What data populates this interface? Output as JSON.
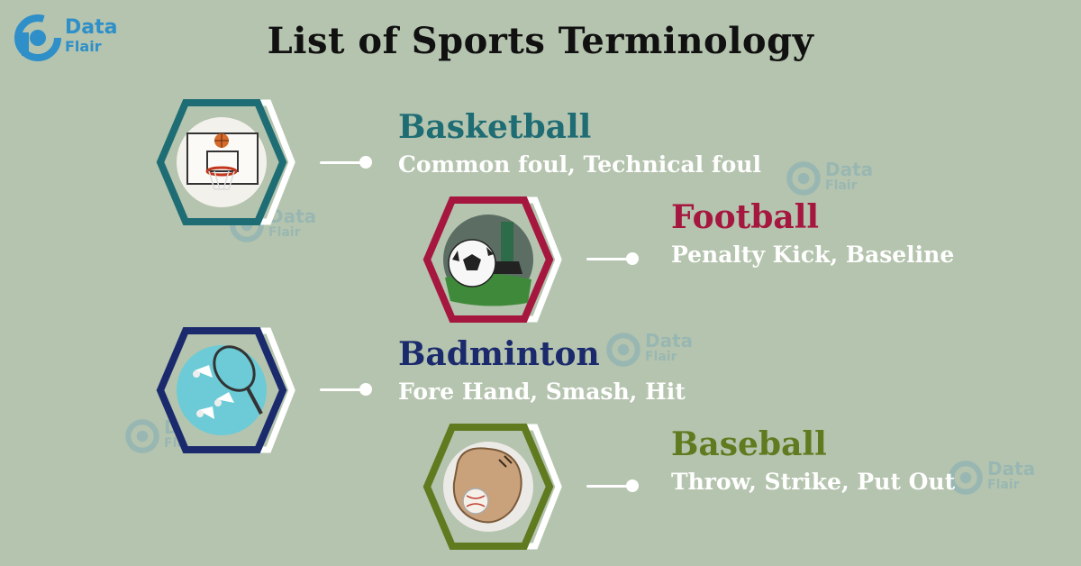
{
  "brand": {
    "name_line1": "Data",
    "name_line2": "Flair"
  },
  "title": "List of Sports Terminology",
  "watermark": {
    "line1": "Data",
    "line2": "Flair"
  },
  "sports": [
    {
      "name": "Basketball",
      "terms": "Common foul, Technical foul",
      "color": "#1f6d74",
      "icon": "basketball-hoop-icon"
    },
    {
      "name": "Football",
      "terms": "Penalty Kick, Baseline",
      "color": "#a5173f",
      "icon": "soccer-ball-icon"
    },
    {
      "name": "Badminton",
      "terms": "Fore Hand, Smash, Hit",
      "color": "#1a2a6c",
      "icon": "shuttlecock-icon"
    },
    {
      "name": "Baseball",
      "terms": "Throw, Strike, Put Out",
      "color": "#5f7a1f",
      "icon": "baseball-glove-icon"
    }
  ]
}
